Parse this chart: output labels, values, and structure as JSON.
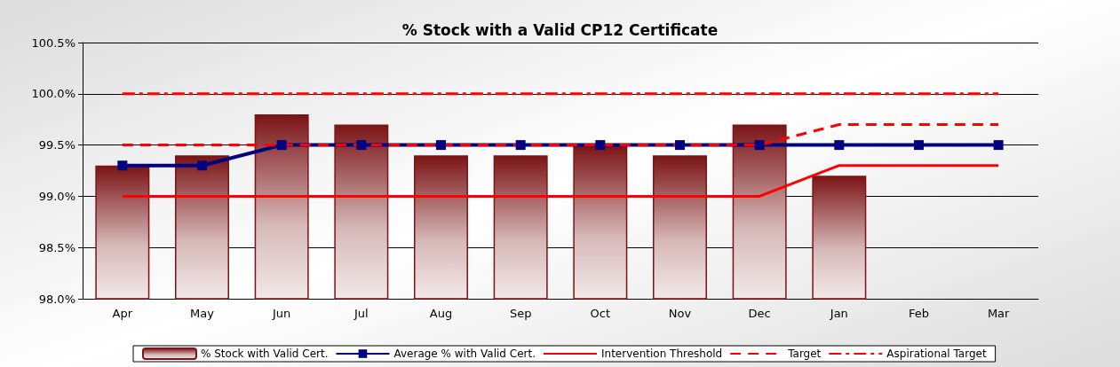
{
  "chart_data": {
    "type": "bar",
    "title": "% Stock with a Valid CP12 Certificate",
    "categories": [
      "Apr",
      "May",
      "Jun",
      "Jul",
      "Aug",
      "Sep",
      "Oct",
      "Nov",
      "Dec",
      "Jan",
      "Feb",
      "Mar"
    ],
    "series": [
      {
        "name": "% Stock with Valid Cert.",
        "color": "#7b1416",
        "values": [
          99.3,
          99.4,
          99.8,
          99.7,
          99.4,
          99.4,
          99.5,
          99.4,
          99.7,
          99.2,
          null,
          null
        ]
      },
      {
        "name": "Average % with Valid Cert.",
        "type": "line",
        "color": "#000080",
        "marker": "square",
        "line_style": "solid",
        "values": [
          99.3,
          99.3,
          99.5,
          99.5,
          99.5,
          99.5,
          99.5,
          99.5,
          99.5,
          99.5,
          99.5,
          99.5
        ]
      },
      {
        "name": "Intervention Threshold",
        "type": "line",
        "color": "#ff0000",
        "marker": "none",
        "line_style": "solid",
        "values": [
          99.0,
          99.0,
          99.0,
          99.0,
          99.0,
          99.0,
          99.0,
          99.0,
          99.0,
          99.3,
          99.3,
          99.3
        ]
      },
      {
        "name": "Target",
        "type": "line",
        "color": "#ff0000",
        "marker": "none",
        "line_style": "dashed",
        "values": [
          99.5,
          99.5,
          99.5,
          99.5,
          99.5,
          99.5,
          99.5,
          99.5,
          99.5,
          99.7,
          99.7,
          99.7
        ]
      },
      {
        "name": "Aspirational Target",
        "type": "line",
        "color": "#ff0000",
        "marker": "none",
        "line_style": "dashdot",
        "values": [
          100.0,
          100.0,
          100.0,
          100.0,
          100.0,
          100.0,
          100.0,
          100.0,
          100.0,
          100.0,
          100.0,
          100.0
        ]
      }
    ],
    "ylim": [
      98,
      100.5
    ],
    "yticks": [
      {
        "value": 98,
        "label": "98.0%"
      },
      {
        "value": 98.5,
        "label": "98.5%"
      },
      {
        "value": 99,
        "label": "99.0%"
      },
      {
        "value": 99.5,
        "label": "99.5%"
      },
      {
        "value": 100,
        "label": "100.0%"
      },
      {
        "value": 100.5,
        "label": "100.5%"
      }
    ],
    "grid": "y",
    "legend": "bottom"
  }
}
